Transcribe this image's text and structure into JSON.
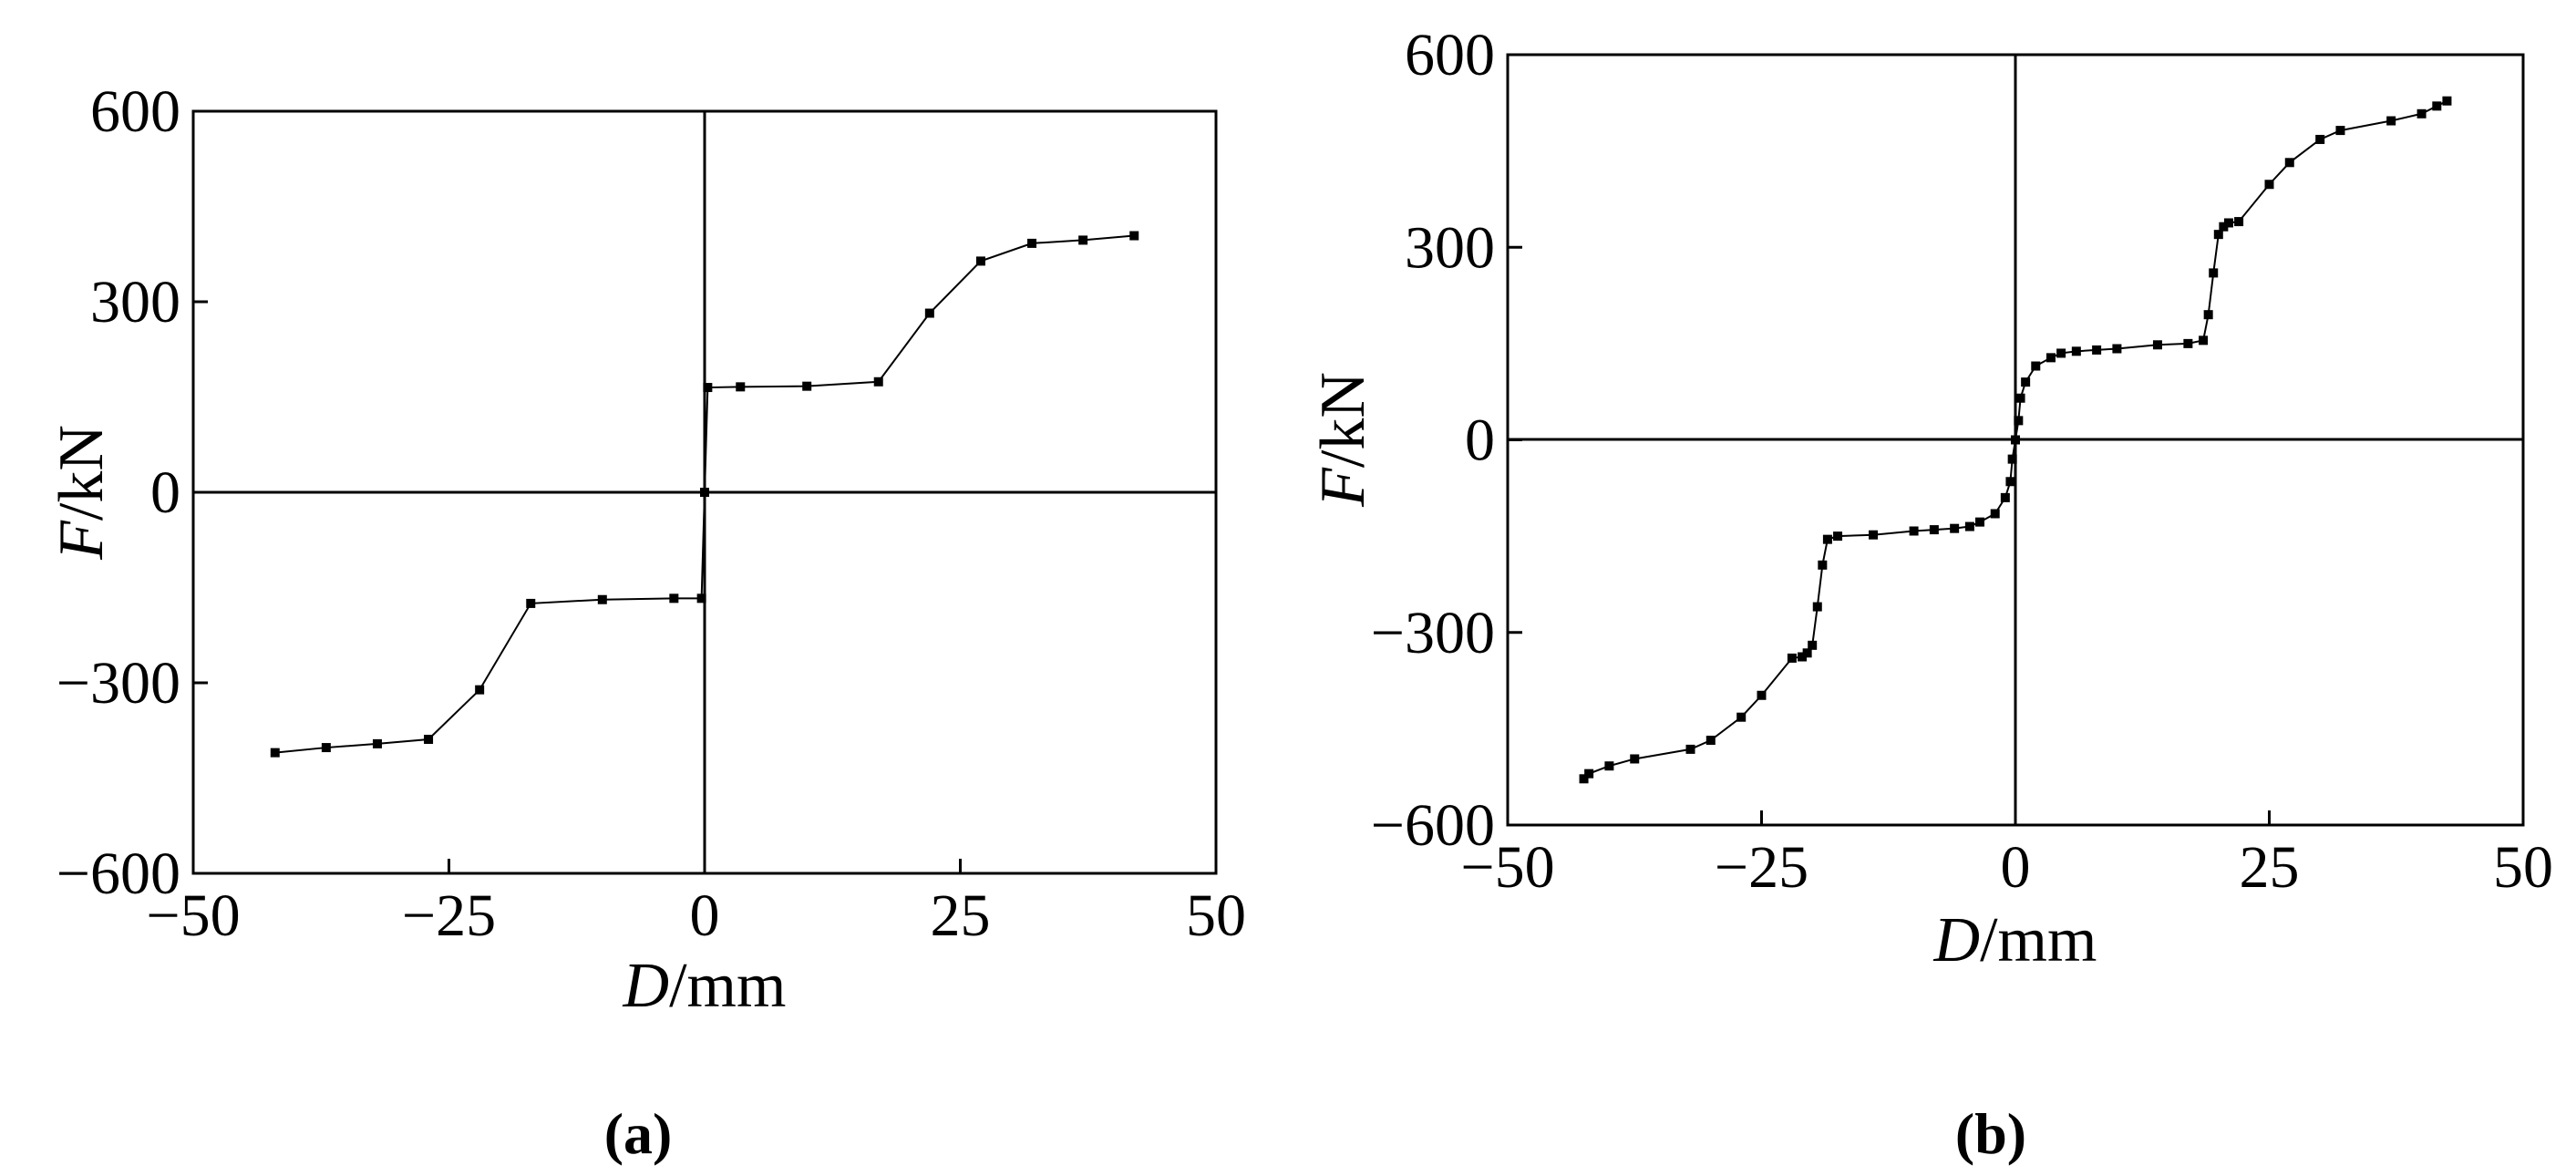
{
  "chart_data": [
    {
      "type": "line",
      "panel_label": "(a)",
      "xlabel_var": "D",
      "xlabel_unit": "/mm",
      "ylabel_var": "F",
      "ylabel_unit": "/kN",
      "xlim": [
        -50,
        50
      ],
      "ylim": [
        -600,
        600
      ],
      "xticks": [
        -50,
        -25,
        0,
        25,
        50
      ],
      "yticks": [
        -600,
        -300,
        0,
        300,
        600
      ],
      "xtick_labels": [
        "−50",
        "−25",
        "0",
        "25",
        "50"
      ],
      "ytick_labels": [
        "−600",
        "−300",
        "0",
        "300",
        "600"
      ],
      "grid": false,
      "series": [
        {
          "x": [
            -42,
            -37,
            -32,
            -27,
            -22,
            -17,
            -10,
            -3,
            -0.3,
            0,
            0.3,
            3.5,
            10,
            17,
            22,
            27,
            32,
            37,
            42
          ],
          "y": [
            -410,
            -402,
            -396,
            -389,
            -311,
            -175,
            -169,
            -167,
            -167,
            0,
            165,
            166,
            167,
            174,
            282,
            364,
            392,
            397,
            404
          ]
        }
      ]
    },
    {
      "type": "line",
      "panel_label": "(b)",
      "xlabel_var": "D",
      "xlabel_unit": "/mm",
      "ylabel_var": "F",
      "ylabel_unit": "/kN",
      "xlim": [
        -50,
        50
      ],
      "ylim": [
        -600,
        600
      ],
      "xticks": [
        -50,
        -25,
        0,
        25,
        50
      ],
      "yticks": [
        -600,
        -300,
        0,
        300,
        600
      ],
      "xtick_labels": [
        "−50",
        "−25",
        "0",
        "25",
        "50"
      ],
      "ytick_labels": [
        "−600",
        "−300",
        "0",
        "300",
        "600"
      ],
      "grid": false,
      "series": [
        {
          "x": [
            -42.5,
            -42,
            -40,
            -37.5,
            -32,
            -30,
            -27,
            -25,
            -22,
            -21,
            -20.5,
            -20,
            -19.5,
            -19,
            -18.5,
            -17.5,
            -14,
            -10,
            -8,
            -6,
            -4.5,
            -3.5,
            -2,
            -1,
            -0.5,
            -0.3,
            0,
            0.3,
            0.5,
            1,
            2,
            3.5,
            4.5,
            6,
            8,
            10,
            14,
            17,
            18.5,
            19,
            19.5,
            20,
            20.5,
            21,
            22,
            25,
            27,
            30,
            32,
            37,
            40,
            41.5,
            42.5
          ],
          "y": [
            -528,
            -520,
            -508,
            -497,
            -482,
            -468,
            -432,
            -398,
            -340,
            -338,
            -332,
            -320,
            -260,
            -195,
            -155,
            -150,
            -148,
            -142,
            -140,
            -138,
            -135,
            -128,
            -115,
            -90,
            -65,
            -30,
            0,
            30,
            65,
            90,
            115,
            128,
            135,
            138,
            140,
            142,
            148,
            150,
            155,
            195,
            260,
            320,
            332,
            338,
            340,
            398,
            432,
            468,
            482,
            497,
            508,
            520,
            528
          ]
        }
      ]
    }
  ]
}
